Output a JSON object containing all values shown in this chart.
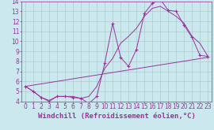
{
  "background_color": "#cce8ef",
  "line_color": "#993399",
  "grid_color": "#aacccc",
  "xlabel": "Windchill (Refroidissement éolien,°C)",
  "xlabel_fontsize": 6.5,
  "tick_fontsize": 5.5,
  "xlim": [
    -0.5,
    23.5
  ],
  "ylim": [
    4,
    14
  ],
  "yticks": [
    4,
    5,
    6,
    7,
    8,
    9,
    10,
    11,
    12,
    13,
    14
  ],
  "xticks": [
    0,
    1,
    2,
    3,
    4,
    5,
    6,
    7,
    8,
    9,
    10,
    11,
    12,
    13,
    14,
    15,
    16,
    17,
    18,
    19,
    20,
    21,
    22,
    23
  ],
  "series1_marked": {
    "x": [
      0,
      1,
      2,
      3,
      4,
      5,
      6,
      7,
      8,
      9,
      10,
      11,
      12,
      13,
      14,
      15,
      16,
      17,
      18,
      19,
      20,
      21,
      22,
      23
    ],
    "y": [
      5.5,
      5.0,
      4.4,
      4.0,
      4.5,
      4.5,
      4.4,
      4.3,
      3.8,
      4.5,
      7.8,
      11.8,
      8.4,
      7.5,
      9.2,
      12.8,
      13.8,
      14.2,
      13.1,
      13.0,
      11.6,
      10.4,
      8.6,
      8.5
    ]
  },
  "series2_smooth": {
    "x": [
      0,
      1,
      2,
      3,
      4,
      5,
      6,
      7,
      8,
      9,
      10,
      11,
      12,
      13,
      14,
      15,
      16,
      17,
      18,
      19,
      20,
      21,
      22,
      23
    ],
    "y": [
      5.5,
      5.0,
      4.4,
      4.1,
      4.5,
      4.5,
      4.5,
      4.3,
      4.5,
      5.5,
      7.3,
      8.3,
      9.8,
      10.5,
      11.3,
      12.5,
      13.3,
      13.5,
      13.0,
      12.5,
      11.8,
      10.5,
      9.8,
      8.5
    ]
  },
  "series3_line": {
    "x": [
      0,
      23
    ],
    "y": [
      5.5,
      8.4
    ]
  }
}
